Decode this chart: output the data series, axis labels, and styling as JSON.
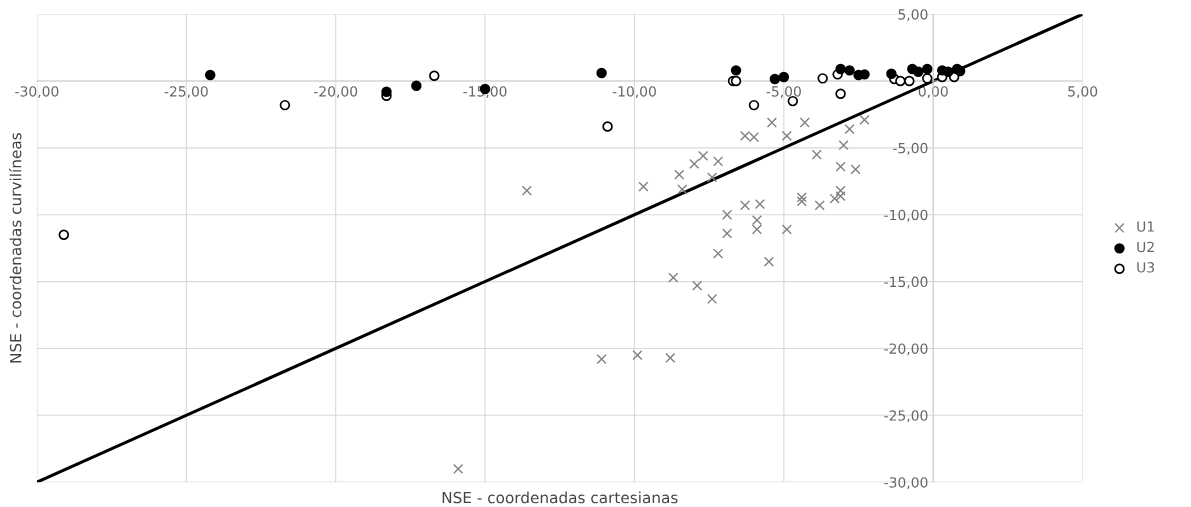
{
  "chart_data": {
    "type": "scatter",
    "xlabel": "NSE - coordenadas cartesianas",
    "ylabel": "NSE - coordenadas curvilíneas",
    "xlim": [
      -30,
      5
    ],
    "ylim": [
      -30,
      5
    ],
    "xticks": [
      {
        "value": -30,
        "label": "-30,00"
      },
      {
        "value": -25,
        "label": "-25,00"
      },
      {
        "value": -20,
        "label": "-20,00"
      },
      {
        "value": -15,
        "label": "-15,00"
      },
      {
        "value": -10,
        "label": "-10,00"
      },
      {
        "value": -5,
        "label": "-5,00"
      },
      {
        "value": 0,
        "label": "0,00"
      },
      {
        "value": 5,
        "label": "5,00"
      }
    ],
    "yticks": [
      {
        "value": -30,
        "label": "-30,00"
      },
      {
        "value": -25,
        "label": "-25,00"
      },
      {
        "value": -20,
        "label": "-20,00"
      },
      {
        "value": -15,
        "label": "-15,00"
      },
      {
        "value": -10,
        "label": "-10,00"
      },
      {
        "value": -5,
        "label": "-5,00"
      },
      {
        "value": 0,
        "label": null
      },
      {
        "value": 5,
        "label": "5,00"
      }
    ],
    "grid": true,
    "legend": "right",
    "series": [
      {
        "name": "U1",
        "color": "#808080",
        "marker": "cross",
        "x": [
          -13.6,
          -15.9,
          -11.1,
          -9.9,
          -8.8,
          -8.7,
          -7.9,
          -7.4,
          -7.2,
          -6.9,
          -6.9,
          -5.9,
          -5.9,
          -5.5,
          -4.9,
          -9.7,
          -8.5,
          -8.4,
          -8.0,
          -7.7,
          -7.2,
          -7.4,
          -6.3,
          -5.8,
          -6.3,
          -6.0,
          -5.4,
          -4.9,
          -4.3,
          -3.9,
          -4.4,
          -4.4,
          -3.8,
          -3.3,
          -3.1,
          -3.1,
          -3.1,
          -2.6,
          -3.0,
          -2.8,
          -2.3
        ],
        "values": [
          -8.2,
          -29.0,
          -20.8,
          -20.5,
          -20.7,
          -14.7,
          -15.3,
          -16.3,
          -12.9,
          -11.4,
          -10.0,
          -11.1,
          -10.4,
          -13.5,
          -11.1,
          -7.9,
          -7.0,
          -8.1,
          -6.2,
          -5.6,
          -6.0,
          -7.2,
          -9.3,
          -9.2,
          -4.1,
          -4.2,
          -3.1,
          -4.1,
          -3.1,
          -5.5,
          -8.7,
          -9.0,
          -9.3,
          -8.8,
          -8.2,
          -8.6,
          -6.4,
          -6.6,
          -4.8,
          -3.6,
          -2.9
        ]
      },
      {
        "name": "U2",
        "color": "#000000",
        "marker": "circle",
        "x": [
          -24.2,
          -18.3,
          -17.3,
          -15.0,
          -11.1,
          -6.6,
          -5.3,
          -5.0,
          -3.1,
          -2.8,
          -2.5,
          -2.3,
          -1.4,
          -0.7,
          -0.5,
          -0.2,
          0.3,
          0.5,
          0.8,
          0.9
        ],
        "values": [
          0.45,
          -0.8,
          -0.35,
          -0.6,
          0.6,
          0.8,
          0.15,
          0.3,
          0.9,
          0.8,
          0.45,
          0.5,
          0.55,
          0.9,
          0.7,
          0.9,
          0.8,
          0.7,
          0.9,
          0.75
        ]
      },
      {
        "name": "U3",
        "color": "#ffffff",
        "marker": "circle",
        "x": [
          -21.7,
          -18.3,
          -16.7,
          -29.1,
          -10.9,
          -6.7,
          -6.6,
          -6.0,
          -4.7,
          -3.7,
          -3.2,
          -3.1,
          -1.3,
          -1.1,
          -0.8,
          -0.2,
          0.3,
          0.7
        ],
        "values": [
          -1.8,
          -1.1,
          0.4,
          -11.5,
          -3.4,
          0.0,
          0.0,
          -1.8,
          -1.5,
          0.2,
          0.5,
          -0.95,
          0.15,
          0.0,
          0.0,
          0.2,
          0.3,
          0.3
        ]
      },
      {
        "type": "line",
        "color": "#000000",
        "marker": "none",
        "x": [
          -30,
          5
        ],
        "values": [
          -30,
          5
        ]
      }
    ]
  }
}
